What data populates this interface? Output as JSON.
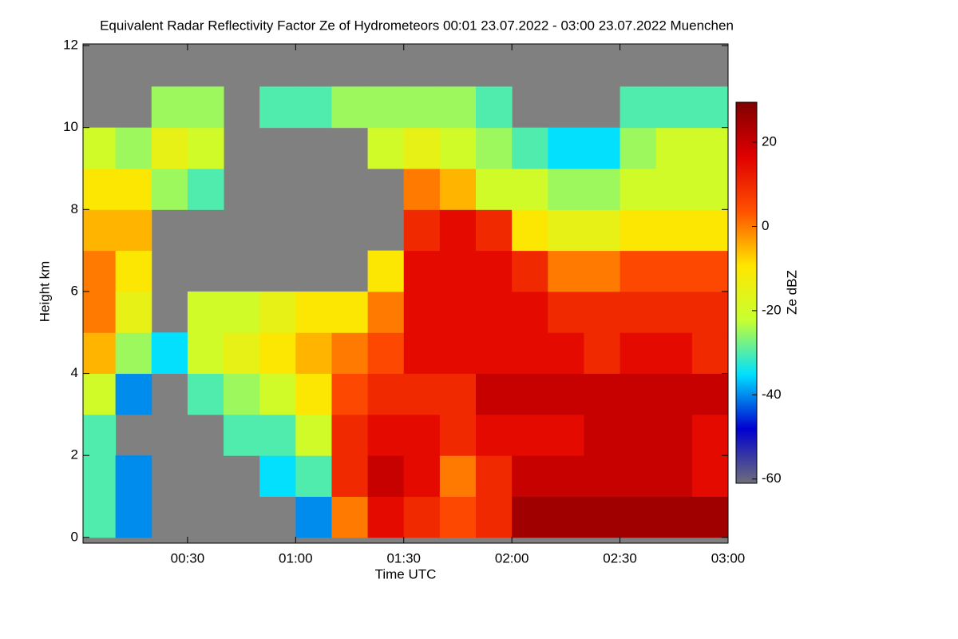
{
  "chart_data": {
    "type": "heatmap",
    "title": "Equivalent Radar Reflectivity Factor Ze of Hydrometeors   00:01 23.07.2022 - 03:00 23.07.2022 Muenchen",
    "x_label": "Time UTC",
    "y_label": "Height km",
    "colorbar_label": "Ze dBZ",
    "time_bins": [
      1,
      10,
      20,
      30,
      40,
      50,
      60,
      70,
      80,
      90,
      100,
      110,
      120,
      130,
      140,
      150,
      160,
      170,
      180
    ],
    "height_bins": [
      0,
      1,
      2,
      3,
      4,
      5,
      6,
      7,
      8,
      9,
      10,
      11,
      12
    ],
    "z": [
      [
        -30,
        -30,
        -30,
        -20,
        -5,
        0,
        0,
        -5,
        -10,
        -20,
        null,
        null
      ],
      [
        -40,
        -40,
        null,
        -40,
        -25,
        -15,
        -10,
        -5,
        -10,
        -25,
        null,
        null
      ],
      [
        null,
        null,
        null,
        null,
        -35,
        null,
        null,
        null,
        -25,
        -15,
        -25,
        null
      ],
      [
        null,
        null,
        null,
        -30,
        -20,
        -20,
        null,
        null,
        -30,
        -20,
        -25,
        null
      ],
      [
        null,
        null,
        -30,
        -25,
        -15,
        -20,
        null,
        null,
        null,
        null,
        null,
        null
      ],
      [
        null,
        -35,
        -30,
        -20,
        -10,
        -15,
        null,
        null,
        null,
        null,
        -30,
        null
      ],
      [
        -40,
        -30,
        -20,
        -10,
        -5,
        -10,
        null,
        null,
        null,
        null,
        -30,
        null
      ],
      [
        0,
        10,
        10,
        5,
        0,
        -10,
        null,
        null,
        null,
        null,
        -25,
        null
      ],
      [
        15,
        20,
        15,
        10,
        5,
        0,
        -10,
        null,
        null,
        -20,
        -25,
        null
      ],
      [
        10,
        15,
        15,
        10,
        15,
        15,
        15,
        10,
        0,
        -15,
        -25,
        null
      ],
      [
        5,
        0,
        10,
        10,
        15,
        15,
        15,
        15,
        -5,
        -20,
        -25,
        null
      ],
      [
        10,
        10,
        15,
        20,
        15,
        15,
        15,
        10,
        -20,
        -25,
        -30,
        null
      ],
      [
        25,
        20,
        15,
        20,
        15,
        15,
        10,
        -10,
        -20,
        -30,
        null,
        null
      ],
      [
        25,
        20,
        15,
        20,
        15,
        10,
        0,
        -15,
        -25,
        -35,
        null,
        null
      ],
      [
        25,
        20,
        20,
        20,
        10,
        10,
        0,
        -15,
        -25,
        -35,
        null,
        null
      ],
      [
        25,
        20,
        20,
        20,
        15,
        10,
        5,
        -10,
        -20,
        -25,
        -30,
        null
      ],
      [
        25,
        20,
        20,
        20,
        15,
        10,
        5,
        -10,
        -20,
        -20,
        -30,
        null
      ],
      [
        25,
        15,
        15,
        20,
        10,
        10,
        5,
        -10,
        -20,
        -20,
        -30,
        null
      ]
    ],
    "xlim": [
      1,
      180
    ],
    "xticks": [
      {
        "value": 30,
        "label": "00:30"
      },
      {
        "value": 60,
        "label": "01:00"
      },
      {
        "value": 90,
        "label": "01:30"
      },
      {
        "value": 120,
        "label": "02:00"
      },
      {
        "value": 150,
        "label": "02:30"
      },
      {
        "value": 180,
        "label": "03:00"
      }
    ],
    "ylim": [
      -0.14,
      12.04
    ],
    "yticks": [
      0,
      2,
      4,
      6,
      8,
      10,
      12
    ],
    "clim": [
      -61,
      29.5
    ],
    "cticks": [
      -60,
      -40,
      -20,
      0,
      20
    ],
    "colormap": [
      "#6e6e7a",
      "#0000d0",
      "#00e0ff",
      "#c8ff30",
      "#ffe600",
      "#ff5000",
      "#e00000",
      "#800000"
    ],
    "missing_color": "#808080"
  }
}
